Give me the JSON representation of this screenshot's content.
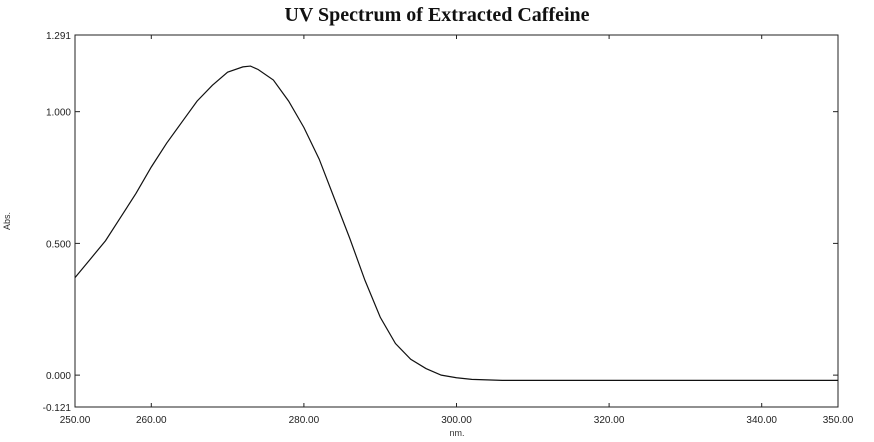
{
  "chart_data": {
    "type": "line",
    "title": "UV Spectrum of Extracted Caffeine",
    "xlabel": "nm.",
    "ylabel": "Abs.",
    "xlim": [
      250.0,
      350.0
    ],
    "ylim": [
      -0.121,
      1.291
    ],
    "x_ticks": [
      "250.00",
      "260.00",
      "280.00",
      "300.00",
      "320.00",
      "340.00",
      "350.00"
    ],
    "y_ticks": [
      "1.291",
      "1.000",
      "0.500",
      "0.000",
      "-0.121"
    ],
    "grid": false,
    "series": [
      {
        "color": "#111111",
        "x": [
          250,
          252,
          254,
          256,
          258,
          260,
          262,
          264,
          266,
          268,
          270,
          272,
          273,
          274,
          276,
          278,
          280,
          282,
          284,
          286,
          288,
          290,
          292,
          294,
          296,
          298,
          300,
          302,
          304,
          306,
          310,
          320,
          330,
          340,
          350
        ],
        "y": [
          0.37,
          0.44,
          0.51,
          0.6,
          0.69,
          0.79,
          0.88,
          0.96,
          1.04,
          1.1,
          1.15,
          1.17,
          1.173,
          1.16,
          1.12,
          1.04,
          0.94,
          0.82,
          0.67,
          0.52,
          0.36,
          0.22,
          0.12,
          0.06,
          0.025,
          0.0,
          -0.01,
          -0.016,
          -0.018,
          -0.02,
          -0.02,
          -0.02,
          -0.02,
          -0.02,
          -0.02
        ]
      }
    ]
  }
}
